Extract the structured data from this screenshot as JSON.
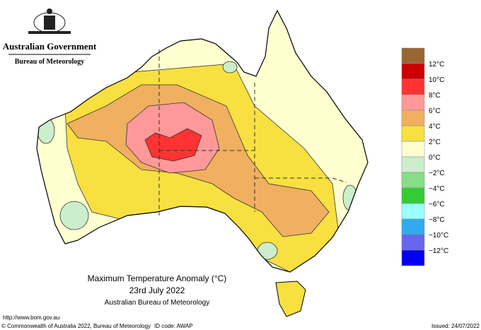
{
  "header": {
    "government": "Australian Government",
    "agency": "Bureau of Meteorology"
  },
  "map": {
    "title": "Maximum Temperature Anomaly (°C)",
    "date": "23rd July 2022",
    "source": "Australian Bureau of Meteorology"
  },
  "legend": {
    "colors": [
      "#996633",
      "#cc0000",
      "#ff3333",
      "#ff9999",
      "#f0b060",
      "#f8e040",
      "#ffffd0",
      "#cceecc",
      "#88dd88",
      "#33cc33",
      "#99ffff",
      "#33aaee",
      "#6666ee",
      "#0000ee"
    ],
    "labels": [
      "12°C",
      "10°C",
      "8°C",
      "6°C",
      "4°C",
      "2°C",
      "0°C",
      "−2°C",
      "−4°C",
      "−6°C",
      "−8°C",
      "−10°C",
      "−12°C"
    ]
  },
  "footer": {
    "url": "http://www.bom.gov.au",
    "copyright": "© Commonwealth of Australia 2022, Bureau of Meteorology",
    "id_code": "ID code: AWAP",
    "issued": "Issued: 24/07/2022"
  }
}
